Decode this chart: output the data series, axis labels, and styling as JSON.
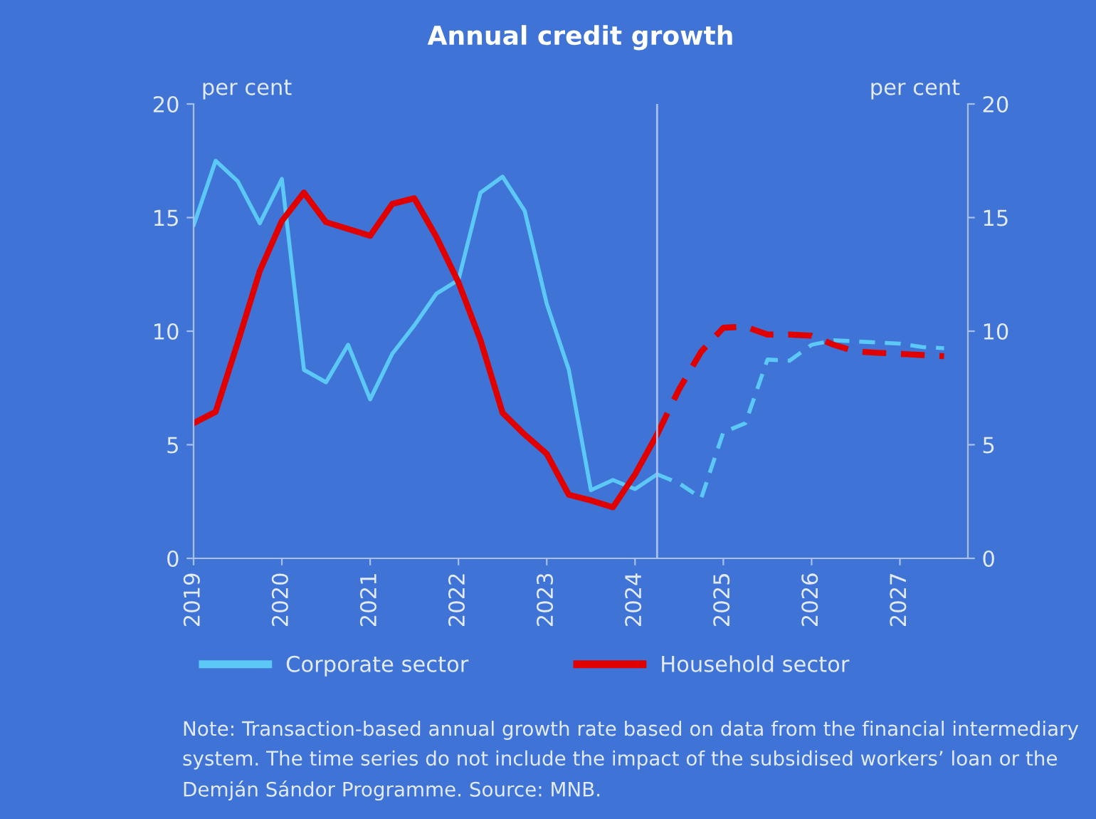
{
  "chart_data": {
    "type": "line",
    "title": "Annual credit growth",
    "ylabel": "per cent",
    "y2label": "per cent",
    "annotations": [
      "Note: Transaction-based annual growth rate based on data from the financial intermediary system. The time series do not include the impact of the subsidised workers’ loan or the Demján Sándor Programme. Source: MNB."
    ],
    "series": [
      {
        "name": "Corporate sector",
        "color": "#5bc8f5",
        "line_style": "solid",
        "x": [
          2019,
          2019.25,
          2019.5,
          2019.75,
          2020,
          2020.25,
          2020.5,
          2020.75,
          2021,
          2021.25,
          2021.5,
          2021.75,
          2022,
          2022.25,
          2022.5,
          2022.75,
          2023,
          2023.25,
          2023.5,
          2023.75,
          2024,
          2024.25
        ],
        "values": [
          14.65,
          17.5,
          16.6,
          14.75,
          16.7,
          8.3,
          7.75,
          9.4,
          7.0,
          9.0,
          10.25,
          11.65,
          12.25,
          16.1,
          16.8,
          15.3,
          11.2,
          8.3,
          3.0,
          3.45,
          3.05,
          3.7
        ]
      },
      {
        "color": "#5bc8f5",
        "line_style": "dashed",
        "x": [
          2024.25,
          2024.5,
          2024.75,
          2025,
          2025.25,
          2025.5,
          2025.75,
          2026,
          2026.25,
          2026.5,
          2026.75,
          2027,
          2027.25,
          2027.5
        ],
        "values": [
          3.7,
          3.3,
          2.65,
          5.55,
          5.95,
          8.75,
          8.7,
          9.4,
          9.6,
          9.55,
          9.5,
          9.45,
          9.3,
          9.25
        ]
      },
      {
        "name": "Household sector",
        "color": "#e00000",
        "line_style": "solid",
        "x": [
          2019,
          2019.25,
          2019.5,
          2019.75,
          2020,
          2020.25,
          2020.5,
          2020.75,
          2021,
          2021.25,
          2021.5,
          2021.75,
          2022,
          2022.25,
          2022.5,
          2022.75,
          2023,
          2023.25,
          2023.5,
          2023.75,
          2024,
          2024.25
        ],
        "values": [
          5.95,
          6.45,
          9.5,
          12.65,
          14.85,
          16.1,
          14.8,
          14.5,
          14.2,
          15.6,
          15.85,
          14.15,
          12.15,
          9.6,
          6.4,
          5.45,
          4.6,
          2.8,
          2.55,
          2.25,
          3.7,
          5.45
        ]
      },
      {
        "color": "#e00000",
        "line_style": "dashed",
        "x": [
          2024.25,
          2024.5,
          2024.75,
          2025,
          2025.25,
          2025.5,
          2025.75,
          2026,
          2026.25,
          2026.5,
          2026.75,
          2027,
          2027.25,
          2027.5
        ],
        "values": [
          5.45,
          7.45,
          9.1,
          10.15,
          10.2,
          9.85,
          9.85,
          9.8,
          9.4,
          9.1,
          9.05,
          9.0,
          8.95,
          8.9
        ]
      }
    ],
    "xlim": [
      2019,
      2027.77
    ],
    "xticks": [
      2019,
      2020,
      2021,
      2022,
      2023,
      2024,
      2025,
      2026,
      2027
    ],
    "ylim": [
      0,
      20
    ],
    "yticks": [
      0,
      5,
      10,
      15,
      20
    ],
    "y2lim": [
      0,
      20
    ],
    "y2ticks": [
      0,
      5,
      10,
      15,
      20
    ],
    "ref_lines": [
      {
        "axis": "x",
        "value": 2024.25,
        "color": "#a9c0ec"
      }
    ],
    "grid": false,
    "legend": "bottom",
    "marker": "none"
  }
}
